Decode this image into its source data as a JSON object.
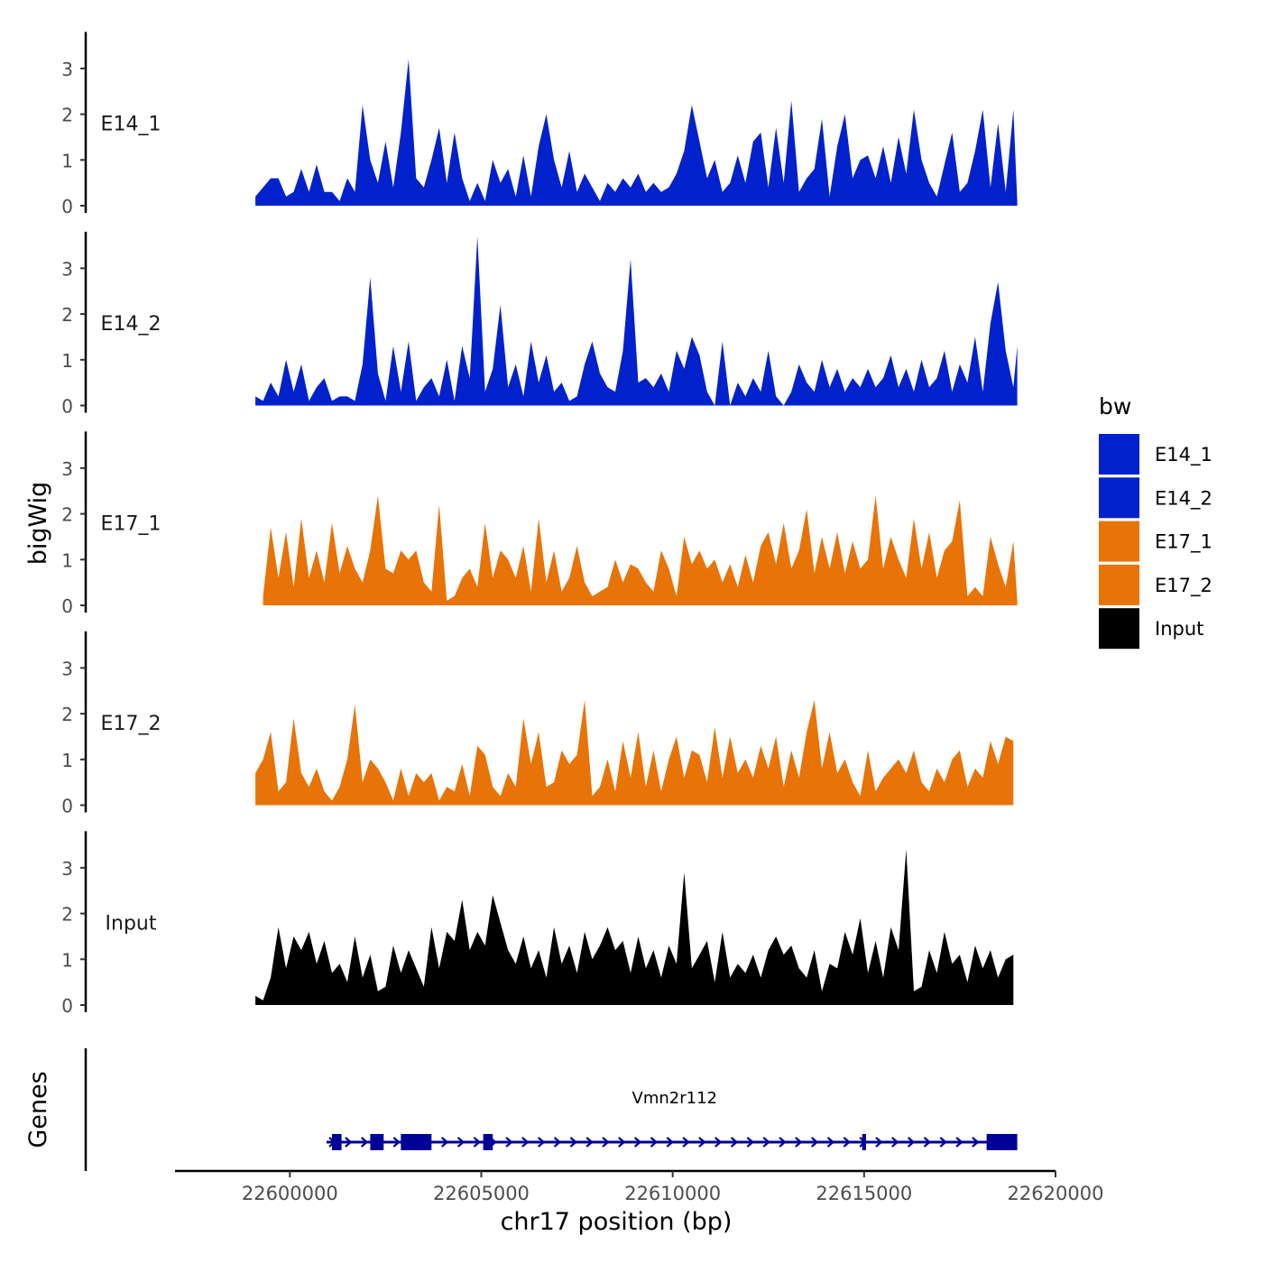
{
  "chart_data": {
    "type": "area",
    "xlabel": "chr17 position (bp)",
    "ylabel": "bigWig",
    "genes_label": "Genes",
    "xlim": [
      22597000,
      22620000
    ],
    "ylim": [
      0,
      3.8
    ],
    "x_ticks": [
      22600000,
      22605000,
      22610000,
      22615000,
      22620000
    ],
    "x_tick_labels": [
      "22600000",
      "22605000",
      "22610000",
      "22615000",
      "22620000"
    ],
    "y_ticks": [
      0,
      1,
      2,
      3
    ],
    "y_tick_labels": [
      "0",
      "1",
      "2",
      "3"
    ],
    "legend": {
      "title": "bw",
      "position": "right",
      "entries": [
        {
          "label": "E14_1",
          "color": "#0021CC"
        },
        {
          "label": "E14_2",
          "color": "#0021CC"
        },
        {
          "label": "E17_1",
          "color": "#E87307"
        },
        {
          "label": "E17_2",
          "color": "#E87307"
        },
        {
          "label": "Input",
          "color": "#000000"
        }
      ]
    },
    "series": [
      {
        "name": "E14_1",
        "color": "#0021CC",
        "x": [
          22599100,
          22599200,
          22599300,
          22599500,
          22599700,
          22599900,
          22600100,
          22600300,
          22600500,
          22600700,
          22600900,
          22601100,
          22601300,
          22601500,
          22601700,
          22601900,
          22602100,
          22602300,
          22602500,
          22602700,
          22602900,
          22603100,
          22603300,
          22603500,
          22603700,
          22603900,
          22604100,
          22604300,
          22604500,
          22604700,
          22604900,
          22605100,
          22605300,
          22605500,
          22605700,
          22605900,
          22606100,
          22606300,
          22606500,
          22606700,
          22606900,
          22607100,
          22607300,
          22607500,
          22607700,
          22607900,
          22608100,
          22608300,
          22608500,
          22608700,
          22608900,
          22609100,
          22609300,
          22609500,
          22609700,
          22609900,
          22610100,
          22610300,
          22610500,
          22610700,
          22610900,
          22611100,
          22611300,
          22611500,
          22611700,
          22611900,
          22612100,
          22612300,
          22612500,
          22612700,
          22612900,
          22613100,
          22613300,
          22613500,
          22613700,
          22613900,
          22614100,
          22614300,
          22614500,
          22614700,
          22614900,
          22615100,
          22615300,
          22615500,
          22615700,
          22615900,
          22616100,
          22616300,
          22616500,
          22616700,
          22616900,
          22617100,
          22617300,
          22617500,
          22617700,
          22617900,
          22618100,
          22618300,
          22618500,
          22618700,
          22618900,
          22619000
        ],
        "values": [
          0.2,
          0.3,
          0.4,
          0.6,
          0.6,
          0.2,
          0.3,
          0.8,
          0.3,
          0.9,
          0.3,
          0.3,
          0.1,
          0.6,
          0.3,
          2.2,
          1.0,
          0.5,
          1.4,
          0.4,
          1.6,
          3.2,
          0.6,
          0.4,
          1.0,
          1.7,
          0.5,
          1.6,
          0.6,
          0.1,
          0.5,
          0.1,
          1.0,
          0.5,
          0.8,
          0.2,
          1.1,
          0.2,
          1.3,
          2.0,
          1.0,
          0.4,
          1.2,
          0.3,
          0.7,
          0.4,
          0.1,
          0.5,
          0.3,
          0.6,
          0.4,
          0.7,
          0.3,
          0.5,
          0.3,
          0.4,
          0.7,
          1.2,
          2.2,
          1.4,
          0.6,
          1.0,
          0.3,
          0.5,
          1.1,
          0.5,
          1.4,
          1.6,
          0.4,
          1.7,
          0.5,
          2.3,
          0.3,
          0.6,
          0.8,
          1.9,
          0.2,
          1.3,
          2.0,
          0.6,
          1.0,
          1.1,
          0.6,
          1.3,
          0.5,
          1.5,
          0.7,
          2.1,
          1.0,
          0.5,
          0.2,
          0.9,
          1.6,
          0.3,
          0.5,
          1.2,
          2.1,
          0.4,
          1.8,
          0.3,
          2.1,
          0.1
        ],
        "label_y": 1.8
      },
      {
        "name": "E14_2",
        "color": "#0021CC",
        "x": [
          22599100,
          22599300,
          22599500,
          22599700,
          22599900,
          22600100,
          22600300,
          22600500,
          22600700,
          22600900,
          22601100,
          22601300,
          22601500,
          22601700,
          22601900,
          22602100,
          22602300,
          22602500,
          22602700,
          22602900,
          22603100,
          22603300,
          22603500,
          22603700,
          22603900,
          22604100,
          22604300,
          22604500,
          22604700,
          22604900,
          22605100,
          22605300,
          22605500,
          22605700,
          22605900,
          22606100,
          22606300,
          22606500,
          22606700,
          22606900,
          22607100,
          22607300,
          22607500,
          22607700,
          22607900,
          22608100,
          22608300,
          22608500,
          22608700,
          22608900,
          22609100,
          22609300,
          22609500,
          22609700,
          22609900,
          22610100,
          22610300,
          22610500,
          22610700,
          22610900,
          22611100,
          22611300,
          22611500,
          22611700,
          22611900,
          22612100,
          22612300,
          22612500,
          22612700,
          22612900,
          22613100,
          22613300,
          22613500,
          22613700,
          22613900,
          22614100,
          22614300,
          22614500,
          22614700,
          22614900,
          22615100,
          22615300,
          22615500,
          22615700,
          22615900,
          22616100,
          22616300,
          22616500,
          22616700,
          22616900,
          22617100,
          22617300,
          22617500,
          22617700,
          22617900,
          22618100,
          22618300,
          22618500,
          22618700,
          22618900,
          22619000
        ],
        "values": [
          0.2,
          0.1,
          0.5,
          0.2,
          1.0,
          0.3,
          0.9,
          0.1,
          0.4,
          0.6,
          0.1,
          0.2,
          0.2,
          0.1,
          0.9,
          2.8,
          0.7,
          0.1,
          1.3,
          0.3,
          1.4,
          0.1,
          0.4,
          0.6,
          0.2,
          1.0,
          0.1,
          1.3,
          0.6,
          3.7,
          0.3,
          0.8,
          2.2,
          0.4,
          0.9,
          0.2,
          1.4,
          0.5,
          1.1,
          0.3,
          0.5,
          0.1,
          0.2,
          0.9,
          1.4,
          0.7,
          0.4,
          0.3,
          1.2,
          3.2,
          0.5,
          0.6,
          0.4,
          0.7,
          0.3,
          1.2,
          0.8,
          1.5,
          1.1,
          0.3,
          0.0,
          1.4,
          0.0,
          0.5,
          0.2,
          0.6,
          0.3,
          1.2,
          0.2,
          0.0,
          0.3,
          0.9,
          0.5,
          0.3,
          1.0,
          0.4,
          0.8,
          0.3,
          0.6,
          0.4,
          0.8,
          0.4,
          0.6,
          1.1,
          0.4,
          0.8,
          0.3,
          1.0,
          0.4,
          0.6,
          1.2,
          0.3,
          0.9,
          0.5,
          1.5,
          0.3,
          1.8,
          2.7,
          1.2,
          0.4,
          1.3
        ],
        "label_y": 1.8
      },
      {
        "name": "E17_1",
        "color": "#E87307",
        "x": [
          22599300,
          22599500,
          22599700,
          22599900,
          22600100,
          22600300,
          22600500,
          22600700,
          22600900,
          22601100,
          22601300,
          22601500,
          22601700,
          22601900,
          22602100,
          22602300,
          22602500,
          22602700,
          22602900,
          22603100,
          22603300,
          22603500,
          22603700,
          22603900,
          22604100,
          22604300,
          22604500,
          22604700,
          22604900,
          22605100,
          22605300,
          22605500,
          22605700,
          22605900,
          22606100,
          22606300,
          22606500,
          22606700,
          22606900,
          22607100,
          22607300,
          22607500,
          22607700,
          22607900,
          22608100,
          22608300,
          22608500,
          22608700,
          22608900,
          22609100,
          22609300,
          22609500,
          22609700,
          22609900,
          22610100,
          22610300,
          22610500,
          22610700,
          22610900,
          22611100,
          22611300,
          22611500,
          22611700,
          22611900,
          22612100,
          22612300,
          22612500,
          22612700,
          22612900,
          22613100,
          22613300,
          22613500,
          22613700,
          22613900,
          22614100,
          22614300,
          22614500,
          22614700,
          22614900,
          22615100,
          22615300,
          22615500,
          22615700,
          22615900,
          22616100,
          22616300,
          22616500,
          22616700,
          22616900,
          22617100,
          22617300,
          22617500,
          22617700,
          22617900,
          22618100,
          22618300,
          22618500,
          22618700,
          22618900,
          22619000
        ],
        "values": [
          0.2,
          1.7,
          0.6,
          1.6,
          0.4,
          1.9,
          0.6,
          1.2,
          0.5,
          1.8,
          0.7,
          1.3,
          0.8,
          0.5,
          1.2,
          2.4,
          0.8,
          0.7,
          1.2,
          1.0,
          1.2,
          0.5,
          0.3,
          2.2,
          0.1,
          0.2,
          0.6,
          0.8,
          0.4,
          1.8,
          0.6,
          1.2,
          1.0,
          0.6,
          1.3,
          0.3,
          1.9,
          0.5,
          1.2,
          0.3,
          0.6,
          1.3,
          0.5,
          0.2,
          0.3,
          0.4,
          1.0,
          0.5,
          0.9,
          0.8,
          0.5,
          0.3,
          1.2,
          0.8,
          0.2,
          1.5,
          0.9,
          1.2,
          0.8,
          1.0,
          0.5,
          0.9,
          0.4,
          1.1,
          0.5,
          1.3,
          1.6,
          0.9,
          1.8,
          0.8,
          1.2,
          2.1,
          0.7,
          1.5,
          0.8,
          1.6,
          0.7,
          1.4,
          0.8,
          1.0,
          2.4,
          0.8,
          1.5,
          1.0,
          0.6,
          1.9,
          0.8,
          1.6,
          0.6,
          1.2,
          1.4,
          2.3,
          0.2,
          0.4,
          0.2,
          1.5,
          0.9,
          0.4,
          1.4,
          0.1
        ],
        "label_y": 1.8
      },
      {
        "name": "E17_2",
        "color": "#E87307",
        "x": [
          22599100,
          22599300,
          22599500,
          22599700,
          22599900,
          22600100,
          22600300,
          22600500,
          22600700,
          22600900,
          22601100,
          22601300,
          22601500,
          22601700,
          22601900,
          22602100,
          22602300,
          22602500,
          22602700,
          22602900,
          22603100,
          22603300,
          22603500,
          22603700,
          22603900,
          22604100,
          22604300,
          22604500,
          22604700,
          22604900,
          22605100,
          22605300,
          22605500,
          22605700,
          22605900,
          22606100,
          22606300,
          22606500,
          22606700,
          22606900,
          22607100,
          22607300,
          22607500,
          22607700,
          22607900,
          22608100,
          22608300,
          22608500,
          22608700,
          22608900,
          22609100,
          22609300,
          22609500,
          22609700,
          22609900,
          22610100,
          22610300,
          22610500,
          22610700,
          22610900,
          22611100,
          22611300,
          22611500,
          22611700,
          22611900,
          22612100,
          22612300,
          22612500,
          22612700,
          22612900,
          22613100,
          22613300,
          22613500,
          22613700,
          22613900,
          22614100,
          22614300,
          22614500,
          22614700,
          22614900,
          22615100,
          22615300,
          22615500,
          22615700,
          22615900,
          22616100,
          22616300,
          22616500,
          22616700,
          22616900,
          22617100,
          22617300,
          22617500,
          22617700,
          22617900,
          22618100,
          22618300,
          22618500,
          22618700,
          22618900
        ],
        "values": [
          0.7,
          1.0,
          1.6,
          0.3,
          0.5,
          1.9,
          0.7,
          0.4,
          0.8,
          0.3,
          0.1,
          0.4,
          1.0,
          2.2,
          0.5,
          1.0,
          0.8,
          0.5,
          0.1,
          0.8,
          0.2,
          0.7,
          0.5,
          0.7,
          0.1,
          0.4,
          0.3,
          0.9,
          0.2,
          1.3,
          1.1,
          0.4,
          0.2,
          0.7,
          0.4,
          1.9,
          0.9,
          1.6,
          0.4,
          0.5,
          1.2,
          0.9,
          1.1,
          2.3,
          0.2,
          0.4,
          1.0,
          0.3,
          1.4,
          0.6,
          1.6,
          0.4,
          1.2,
          0.3,
          1.0,
          1.5,
          0.6,
          1.2,
          1.1,
          0.5,
          1.7,
          0.6,
          1.5,
          0.7,
          1.0,
          0.6,
          1.3,
          0.8,
          1.5,
          0.4,
          1.2,
          0.6,
          1.6,
          2.3,
          0.8,
          1.6,
          0.7,
          1.0,
          0.5,
          0.2,
          1.2,
          0.3,
          0.6,
          0.8,
          1.0,
          0.7,
          1.2,
          0.5,
          0.3,
          0.8,
          0.5,
          1.0,
          1.2,
          0.4,
          0.8,
          0.6,
          1.4,
          0.9,
          1.5,
          1.4
        ],
        "label_y": 1.8
      },
      {
        "name": "Input",
        "color": "#000000",
        "x": [
          22599100,
          22599300,
          22599500,
          22599700,
          22599900,
          22600100,
          22600300,
          22600500,
          22600700,
          22600900,
          22601100,
          22601300,
          22601500,
          22601700,
          22601900,
          22602100,
          22602300,
          22602500,
          22602700,
          22602900,
          22603100,
          22603300,
          22603500,
          22603700,
          22603900,
          22604100,
          22604300,
          22604500,
          22604700,
          22604900,
          22605100,
          22605300,
          22605500,
          22605700,
          22605900,
          22606100,
          22606300,
          22606500,
          22606700,
          22606900,
          22607100,
          22607300,
          22607500,
          22607700,
          22607900,
          22608100,
          22608300,
          22608500,
          22608700,
          22608900,
          22609100,
          22609300,
          22609500,
          22609700,
          22609900,
          22610100,
          22610300,
          22610500,
          22610700,
          22610900,
          22611100,
          22611300,
          22611500,
          22611700,
          22611900,
          22612100,
          22612300,
          22612500,
          22612700,
          22612900,
          22613100,
          22613300,
          22613500,
          22613700,
          22613900,
          22614100,
          22614300,
          22614500,
          22614700,
          22614900,
          22615100,
          22615300,
          22615500,
          22615700,
          22615900,
          22616100,
          22616300,
          22616500,
          22616700,
          22616900,
          22617100,
          22617300,
          22617500,
          22617700,
          22617900,
          22618100,
          22618300,
          22618500,
          22618700,
          22618900
        ],
        "values": [
          0.2,
          0.1,
          0.6,
          1.7,
          0.8,
          1.5,
          1.2,
          1.6,
          0.9,
          1.4,
          0.7,
          0.9,
          0.5,
          1.5,
          0.6,
          1.1,
          0.3,
          0.4,
          1.3,
          0.7,
          1.2,
          0.8,
          0.4,
          1.7,
          0.8,
          1.6,
          1.4,
          2.3,
          1.2,
          1.6,
          1.3,
          2.4,
          1.8,
          1.2,
          0.9,
          1.5,
          0.8,
          1.2,
          0.6,
          1.7,
          0.9,
          1.3,
          0.7,
          1.6,
          1.0,
          1.3,
          1.7,
          1.2,
          1.4,
          0.7,
          1.5,
          0.8,
          1.2,
          0.6,
          1.3,
          0.9,
          2.9,
          0.8,
          1.1,
          1.4,
          0.5,
          1.6,
          0.6,
          0.9,
          0.7,
          1.1,
          0.6,
          1.2,
          1.5,
          1.1,
          1.3,
          0.8,
          0.6,
          1.2,
          0.3,
          0.9,
          0.8,
          1.6,
          1.1,
          1.9,
          0.7,
          1.4,
          0.6,
          1.7,
          1.2,
          3.4,
          0.3,
          0.4,
          1.2,
          0.7,
          1.6,
          0.9,
          1.1,
          0.5,
          1.3,
          0.8,
          1.2,
          0.6,
          1.0,
          1.1
        ],
        "label_y": 1.8
      }
    ],
    "gene_track": {
      "name": "Vmn2r112",
      "color": "#000096",
      "strand": "+",
      "start": 22601100,
      "end": 22619000,
      "exons": [
        [
          22601100,
          22601350
        ],
        [
          22602100,
          22602450
        ],
        [
          22602900,
          22603700
        ],
        [
          22605050,
          22605300
        ],
        [
          22614950,
          22615050
        ],
        [
          22618200,
          22619000
        ]
      ]
    }
  }
}
